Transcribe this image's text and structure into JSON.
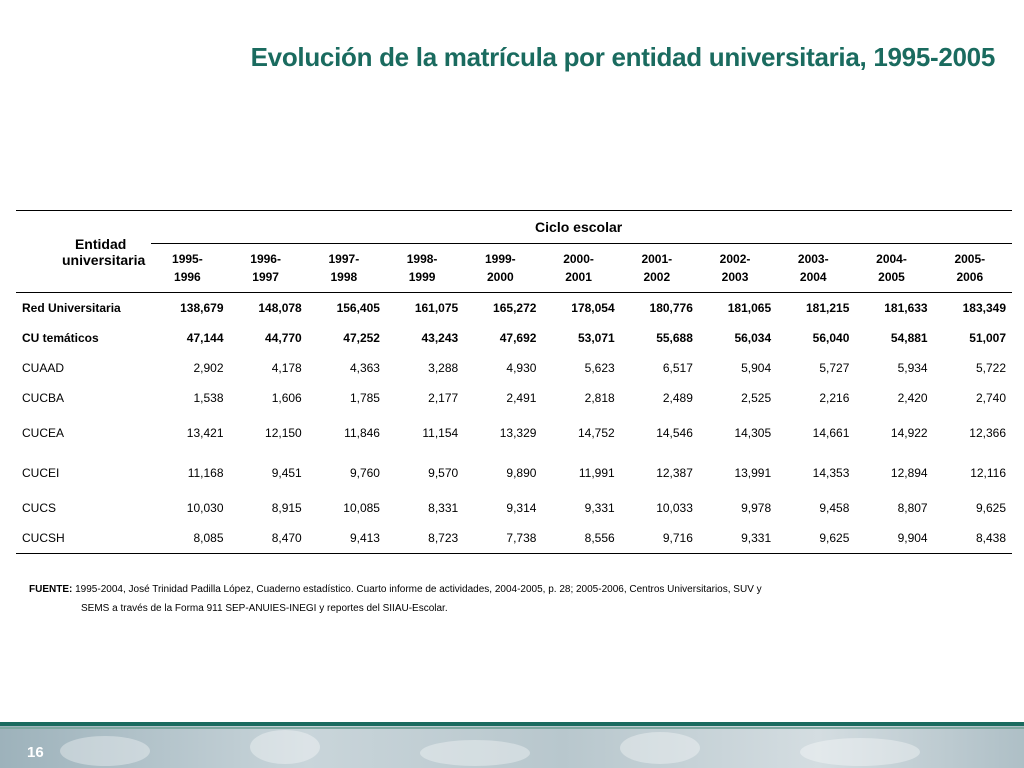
{
  "title": "Evolución de la matrícula por entidad universitaria, 1995-2005",
  "table": {
    "entity_header_line1": "Entidad",
    "entity_header_line2": "universitaria",
    "group_header": "Ciclo escolar",
    "years": [
      [
        "1995-",
        "1996"
      ],
      [
        "1996-",
        "1997"
      ],
      [
        "1997-",
        "1998"
      ],
      [
        "1998-",
        "1999"
      ],
      [
        "1999-",
        "2000"
      ],
      [
        "2000-",
        "2001"
      ],
      [
        "2001-",
        "2002"
      ],
      [
        "2002-",
        "2003"
      ],
      [
        "2003-",
        "2004"
      ],
      [
        "2004-",
        "2005"
      ],
      [
        "2005-",
        "2006"
      ]
    ],
    "rows": [
      {
        "name": "Red Universitaria",
        "values": [
          "138,679",
          "148,078",
          "156,405",
          "161,075",
          "165,272",
          "178,054",
          "180,776",
          "181,065",
          "181,215",
          "181,633",
          "183,349"
        ]
      },
      {
        "name": "CU temáticos",
        "values": [
          "47,144",
          "44,770",
          "47,252",
          "43,243",
          "47,692",
          "53,071",
          "55,688",
          "56,034",
          "56,040",
          "54,881",
          "51,007"
        ]
      },
      {
        "name": "CUAAD",
        "values": [
          "2,902",
          "4,178",
          "4,363",
          "3,288",
          "4,930",
          "5,623",
          "6,517",
          "5,904",
          "5,727",
          "5,934",
          "5,722"
        ]
      },
      {
        "name": "CUCBA",
        "values": [
          "1,538",
          "1,606",
          "1,785",
          "2,177",
          "2,491",
          "2,818",
          "2,489",
          "2,525",
          "2,216",
          "2,420",
          "2,740"
        ]
      },
      {
        "name": "CUCEA",
        "values": [
          "13,421",
          "12,150",
          "11,846",
          "11,154",
          "13,329",
          "14,752",
          "14,546",
          "14,305",
          "14,661",
          "14,922",
          "12,366"
        ]
      },
      {
        "name": "CUCEI",
        "values": [
          "11,168",
          "9,451",
          "9,760",
          "9,570",
          "9,890",
          "11,991",
          "12,387",
          "13,991",
          "14,353",
          "12,894",
          "12,116"
        ]
      },
      {
        "name": "CUCS",
        "values": [
          "10,030",
          "8,915",
          "10,085",
          "8,331",
          "9,314",
          "9,331",
          "10,033",
          "9,978",
          "9,458",
          "8,807",
          "9,625"
        ]
      },
      {
        "name": "CUCSH",
        "values": [
          "8,085",
          "8,470",
          "9,413",
          "8,723",
          "7,738",
          "8,556",
          "9,716",
          "9,331",
          "9,625",
          "9,904",
          "8,438"
        ]
      }
    ]
  },
  "source": {
    "label": "FUENTE:",
    "line1": "1995-2004, José Trinidad Padilla López, Cuaderno estadístico. Cuarto informe de actividades, 2004-2005, p. 28; 2005-2006, Centros Universitarios, SUV y",
    "line2": "SEMS a través de la  Forma 911 SEP-ANUIES-INEGI y reportes del SIIAU-Escolar."
  },
  "page_number": "16"
}
